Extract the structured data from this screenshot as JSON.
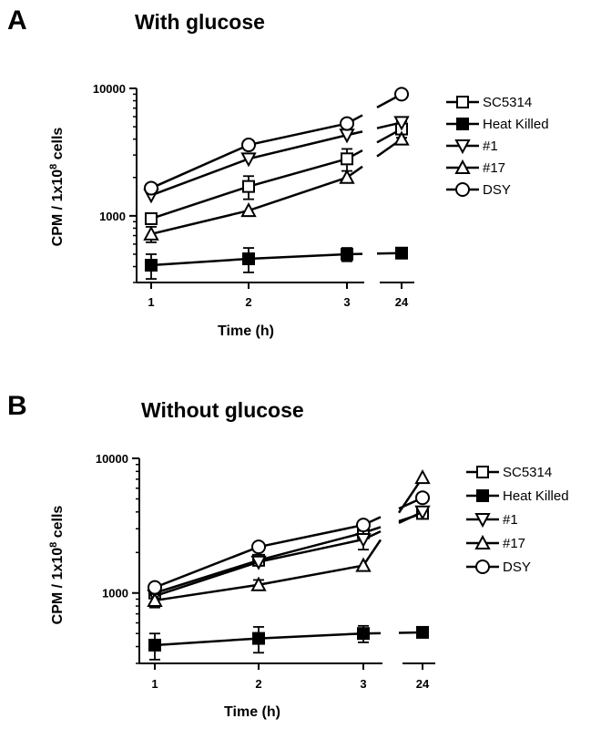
{
  "chart_data": [
    {
      "type": "line",
      "panel_letter": "A",
      "title": "With glucose",
      "xlabel": "Time (h)",
      "ylabel_main": "CPM / 1x10",
      "ylabel_sup": "8",
      "ylabel_tail": " cells",
      "yscale": "log",
      "ylim": [
        300,
        10000
      ],
      "yticks": [
        {
          "value": 1000,
          "label": "1000"
        },
        {
          "value": 10000,
          "label": "10000"
        }
      ],
      "xticks": [
        "1",
        "2",
        "3",
        "24"
      ],
      "x": [
        1,
        2,
        3,
        24
      ],
      "axis_break": "between 3 and 24",
      "legend_position": "right",
      "series": [
        {
          "name": "SC5314",
          "marker": "square-open",
          "values": [
            950,
            1700,
            2800,
            4800
          ],
          "errors": [
            80,
            350,
            550,
            700
          ]
        },
        {
          "name": "Heat Killed",
          "marker": "square-filled",
          "values": [
            410,
            460,
            500,
            510
          ],
          "errors": [
            90,
            100,
            60,
            30
          ]
        },
        {
          "name": "#1",
          "marker": "triangle-down-open",
          "values": [
            1450,
            2800,
            4300,
            5400
          ],
          "errors": [
            0,
            0,
            0,
            0
          ]
        },
        {
          "name": "#17",
          "marker": "triangle-up-open",
          "values": [
            720,
            1100,
            2000,
            4000
          ],
          "errors": [
            100,
            0,
            0,
            0
          ]
        },
        {
          "name": "DSY",
          "marker": "circle-open",
          "values": [
            1650,
            3600,
            5300,
            9000
          ],
          "errors": [
            0,
            0,
            0,
            0
          ]
        }
      ]
    },
    {
      "type": "line",
      "panel_letter": "B",
      "title": "Without glucose",
      "xlabel": "Time (h)",
      "ylabel_main": "CPM / 1x10",
      "ylabel_sup": "8",
      "ylabel_tail": " cells",
      "yscale": "log",
      "ylim": [
        300,
        10000
      ],
      "yticks": [
        {
          "value": 1000,
          "label": "1000"
        },
        {
          "value": 10000,
          "label": "10000"
        }
      ],
      "xticks": [
        "1",
        "2",
        "3",
        "24"
      ],
      "x": [
        1,
        2,
        3,
        24
      ],
      "axis_break": "between 3 and 24",
      "legend_position": "right",
      "series": [
        {
          "name": "SC5314",
          "marker": "square-open",
          "values": [
            1000,
            1750,
            2800,
            3900
          ],
          "errors": [
            0,
            0,
            0,
            0
          ]
        },
        {
          "name": "Heat Killed",
          "marker": "square-filled",
          "values": [
            410,
            460,
            500,
            510
          ],
          "errors": [
            90,
            100,
            70,
            30
          ]
        },
        {
          "name": "#1",
          "marker": "triangle-down-open",
          "values": [
            950,
            1700,
            2500,
            4000
          ],
          "errors": [
            0,
            0,
            400,
            0
          ]
        },
        {
          "name": "#17",
          "marker": "triangle-up-open",
          "values": [
            880,
            1150,
            1600,
            7200
          ],
          "errors": [
            100,
            100,
            0,
            0
          ]
        },
        {
          "name": "DSY",
          "marker": "circle-open",
          "values": [
            1100,
            2200,
            3200,
            5100
          ],
          "errors": [
            0,
            0,
            0,
            0
          ]
        }
      ]
    }
  ]
}
